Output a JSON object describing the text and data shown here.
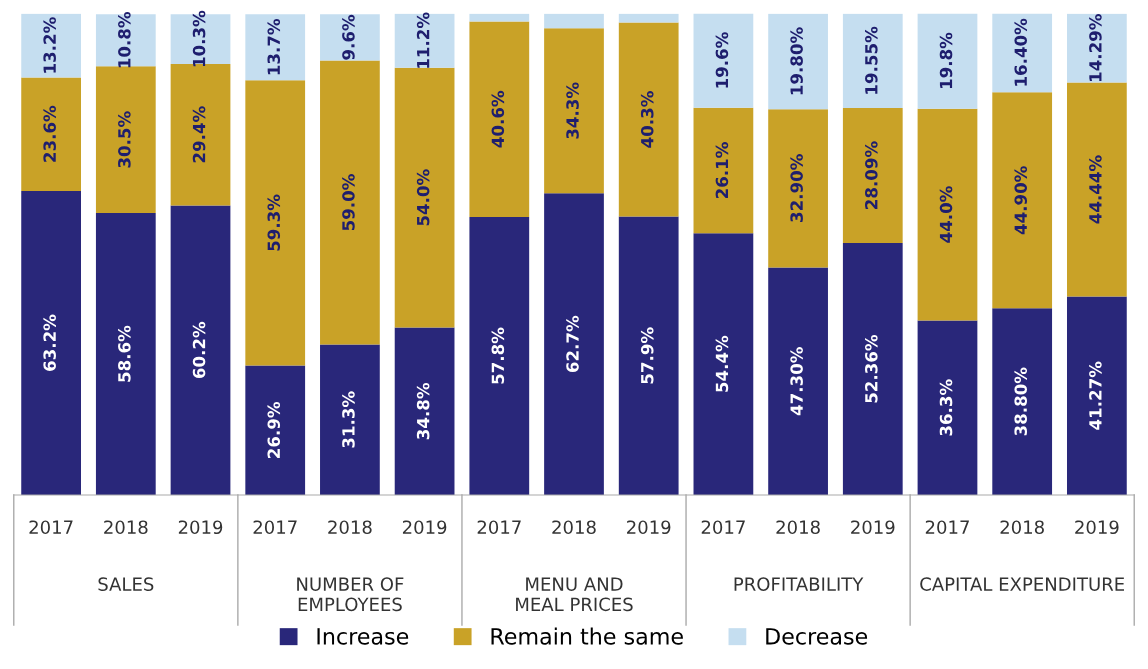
{
  "chart_data": {
    "type": "bar",
    "stacked": true,
    "data_labels": false,
    "tick_labels": "x",
    "grid": false,
    "legend": "bottom",
    "categories": [
      "2017",
      "2018",
      "2019",
      "2017",
      "2018",
      "2019",
      "2017",
      "2018",
      "2019",
      "2017",
      "2018",
      "2019",
      "2017",
      "2018",
      "2019"
    ],
    "annotations": [
      "SALES",
      "NUMBER OF EMPLOYEES",
      "MENU AND MEAL PRICES",
      "PROFITABILITY",
      "CAPITAL EXPENDITURE"
    ],
    "series": [
      {
        "name": "Increase",
        "color": "#29277a",
        "values": [
          63.2,
          58.6,
          60.2,
          26.9,
          31.3,
          34.8,
          57.8,
          62.7,
          57.9,
          54.4,
          47.3,
          52.36,
          36.3,
          38.8,
          41.27
        ],
        "value_labels": [
          "63.2%",
          "58.6%",
          "60.2%",
          "26.9%",
          "31.3%",
          "34.8%",
          "57.8%",
          "62.7%",
          "57.9%",
          "54.4%",
          "47.30%",
          "52.36%",
          "36.3%",
          "38.80%",
          "41.27%"
        ]
      },
      {
        "name": "Remain the same",
        "color": "#c9a227",
        "values": [
          23.6,
          30.5,
          29.4,
          59.3,
          59.0,
          54.0,
          40.6,
          34.3,
          40.3,
          26.1,
          32.9,
          28.09,
          44.0,
          44.9,
          44.44
        ],
        "value_labels": [
          "23.6%",
          "30.5%",
          "29.4%",
          "59.3%",
          "59.0%",
          "54.0%",
          "40.6%",
          "34.3%",
          "40.3%",
          "26.1%",
          "32.90%",
          "28.09%",
          "44.0%",
          "44.90%",
          "44.44%"
        ]
      },
      {
        "name": "Decrease",
        "color": "#c5def0",
        "values": [
          13.2,
          10.8,
          10.3,
          13.7,
          9.6,
          11.2,
          1.6,
          3.0,
          1.8,
          19.6,
          19.8,
          19.55,
          19.8,
          16.4,
          14.29
        ],
        "value_labels": [
          "13.2%",
          "10.8%",
          "10.3%",
          "13.7%",
          "9.6%",
          "11.2%",
          null,
          null,
          null,
          "19.6%",
          "19.80%",
          "19.55%",
          "19.8%",
          "16.40%",
          "14.29%"
        ]
      }
    ]
  }
}
